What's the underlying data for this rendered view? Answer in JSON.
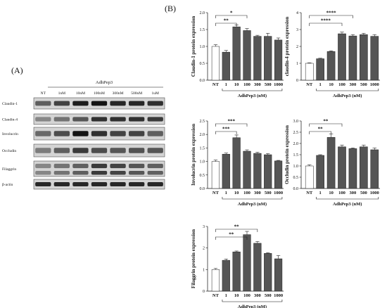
{
  "panel_a": {
    "label": "(A)",
    "treatment_label": "AdhPep3",
    "lanes": [
      "NT",
      "1nM",
      "10nM",
      "100nM",
      "300nM",
      "500nM",
      "1uM"
    ],
    "rows": [
      {
        "name": "Claudin-1",
        "intensity": [
          0.55,
          0.7,
          0.9,
          0.95,
          0.85,
          0.85,
          0.8
        ]
      },
      {
        "name": "Claudin-4",
        "intensity": [
          0.35,
          0.45,
          0.6,
          0.8,
          0.8,
          0.8,
          0.75
        ]
      },
      {
        "name": "Involucrin",
        "intensity": [
          0.5,
          0.65,
          0.95,
          0.8,
          0.7,
          0.7,
          0.55
        ]
      },
      {
        "name": "Occludin",
        "intensity": [
          0.4,
          0.55,
          0.75,
          0.65,
          0.6,
          0.62,
          0.6
        ]
      },
      {
        "name": "Filaggrin",
        "intensity": [
          0.35,
          0.45,
          0.55,
          0.75,
          0.7,
          0.6,
          0.55
        ]
      },
      {
        "name": "β-actin",
        "intensity": [
          0.85,
          0.85,
          0.85,
          0.85,
          0.85,
          0.85,
          0.85
        ]
      }
    ]
  },
  "panel_b": {
    "label": "(B)"
  },
  "chart_data": [
    {
      "type": "bar",
      "ylabel": "Claudin-1 protein expression",
      "xlabel": "AdhPep3 (nM)",
      "categories": [
        "NT",
        "1",
        "10",
        "100",
        "300",
        "500",
        "1000"
      ],
      "values": [
        1.0,
        0.83,
        1.58,
        1.47,
        1.3,
        1.3,
        1.19
      ],
      "errors": [
        0.05,
        0.05,
        0.06,
        0.06,
        0.03,
        0.09,
        0.06
      ],
      "ylim": [
        0,
        2.0
      ],
      "yticks": [
        0,
        0.5,
        1.0,
        1.5,
        2.0
      ],
      "yticklabels": [
        "0.0",
        "0.5",
        "1.0",
        "1.5",
        "2.0"
      ],
      "significance": [
        {
          "from": 0,
          "to": 3,
          "label": "*"
        },
        {
          "from": 0,
          "to": 2,
          "label": "**"
        }
      ]
    },
    {
      "type": "bar",
      "ylabel": "claudin-4 protein expression",
      "xlabel": "AdhPep3 (nM)",
      "categories": [
        "NT",
        "1",
        "10",
        "100",
        "300",
        "500",
        "1000"
      ],
      "values": [
        1.0,
        1.27,
        1.7,
        2.75,
        2.62,
        2.7,
        2.6
      ],
      "errors": [
        0.03,
        0.03,
        0.04,
        0.1,
        0.08,
        0.08,
        0.1
      ],
      "ylim": [
        0,
        4
      ],
      "yticks": [
        0,
        1,
        2,
        3,
        4
      ],
      "yticklabels": [
        "0",
        "1",
        "2",
        "3",
        "4"
      ],
      "significance": [
        {
          "from": 0,
          "to": 4,
          "label": "****"
        },
        {
          "from": 0,
          "to": 3,
          "label": "****"
        }
      ]
    },
    {
      "type": "bar",
      "ylabel": "Involucrin protein expression",
      "xlabel": "AdhPep3 (nM)",
      "categories": [
        "NT",
        "1",
        "10",
        "100",
        "300",
        "500",
        "1000"
      ],
      "values": [
        1.0,
        1.27,
        1.88,
        1.38,
        1.3,
        1.25,
        1.02
      ],
      "errors": [
        0.05,
        0.04,
        0.1,
        0.05,
        0.04,
        0.04,
        0.02
      ],
      "ylim": [
        0,
        2.5
      ],
      "yticks": [
        0,
        0.5,
        1.0,
        1.5,
        2.0,
        2.5
      ],
      "yticklabels": [
        "0.0",
        "0.5",
        "1.0",
        "1.5",
        "2.0",
        "2.5"
      ],
      "significance": [
        {
          "from": 0,
          "to": 3,
          "label": "***"
        },
        {
          "from": 0,
          "to": 2,
          "label": "***"
        }
      ]
    },
    {
      "type": "bar",
      "ylabel": "Occludin protein expression",
      "xlabel": "AdhPep3 (nM)",
      "categories": [
        "NT",
        "1",
        "10",
        "100",
        "300",
        "500",
        "1000"
      ],
      "values": [
        1.0,
        1.47,
        2.27,
        1.85,
        1.77,
        1.85,
        1.72
      ],
      "errors": [
        0.05,
        0.03,
        0.15,
        0.08,
        0.03,
        0.08,
        0.08
      ],
      "ylim": [
        0,
        3.0
      ],
      "yticks": [
        0,
        0.5,
        1.0,
        1.5,
        2.0,
        2.5,
        3.0
      ],
      "yticklabels": [
        "0.0",
        "0.5",
        "1.0",
        "1.5",
        "2.0",
        "2.5",
        "3.0"
      ],
      "significance": [
        {
          "from": 0,
          "to": 3,
          "label": "**"
        },
        {
          "from": 0,
          "to": 2,
          "label": "**"
        }
      ]
    },
    {
      "type": "bar",
      "ylabel": "Filaggrin protein expression",
      "xlabel": "AdhPep3 (nM)",
      "categories": [
        "NT",
        "1",
        "10",
        "100",
        "300",
        "500",
        "1000"
      ],
      "values": [
        1.0,
        1.43,
        1.82,
        2.62,
        2.22,
        1.75,
        1.5
      ],
      "errors": [
        0.05,
        0.06,
        0.04,
        0.15,
        0.08,
        0.03,
        0.15
      ],
      "ylim": [
        0,
        3
      ],
      "yticks": [
        0,
        1,
        2,
        3
      ],
      "yticklabels": [
        "0",
        "1",
        "2",
        "3"
      ],
      "significance": [
        {
          "from": 0,
          "to": 4,
          "label": "**"
        },
        {
          "from": 0,
          "to": 3,
          "label": "**"
        }
      ]
    }
  ]
}
